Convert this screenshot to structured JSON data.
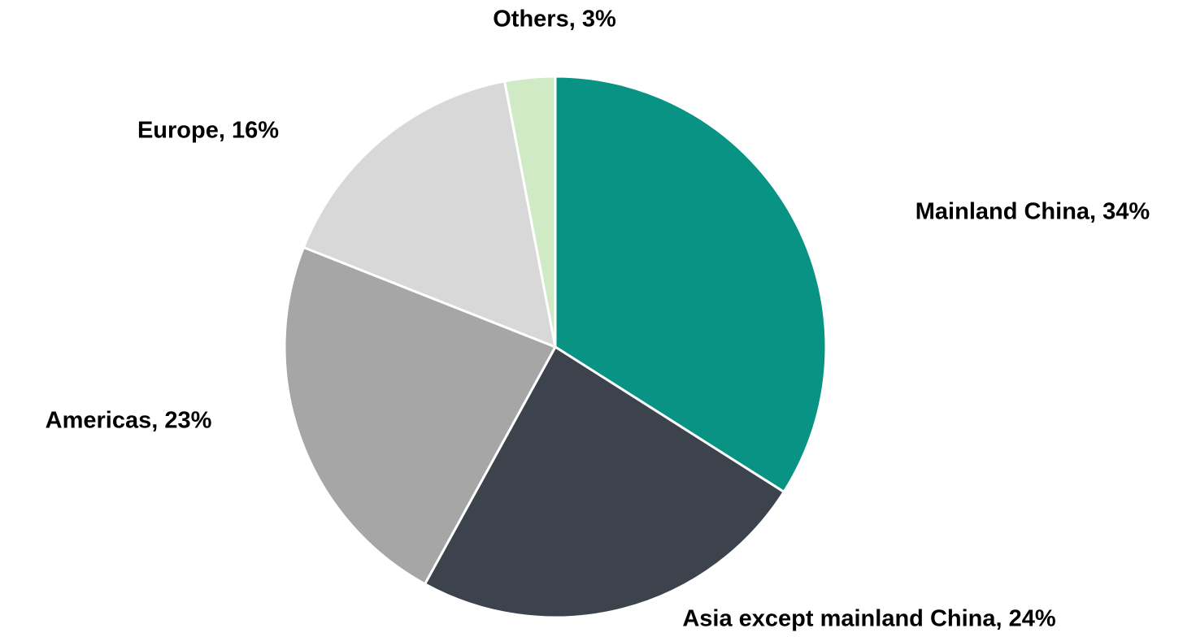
{
  "chart_data": {
    "type": "pie",
    "title": "",
    "start": "top",
    "direction": "clockwise",
    "slices": [
      {
        "label": "Mainland China",
        "value": 34,
        "display": "Mainland China, 34%",
        "color": "#089385"
      },
      {
        "label": "Asia except mainland China",
        "value": 24,
        "display": "Asia except mainland China, 24%",
        "color": "#3d434d"
      },
      {
        "label": "Americas",
        "value": 23,
        "display": "Americas, 23%",
        "color": "#a6a6a6"
      },
      {
        "label": "Europe",
        "value": 16,
        "display": "Europe, 16%",
        "color": "#d8d8d9"
      },
      {
        "label": "Others",
        "value": 3,
        "display": "Others, 3%",
        "color": "#cfeac5"
      }
    ]
  }
}
